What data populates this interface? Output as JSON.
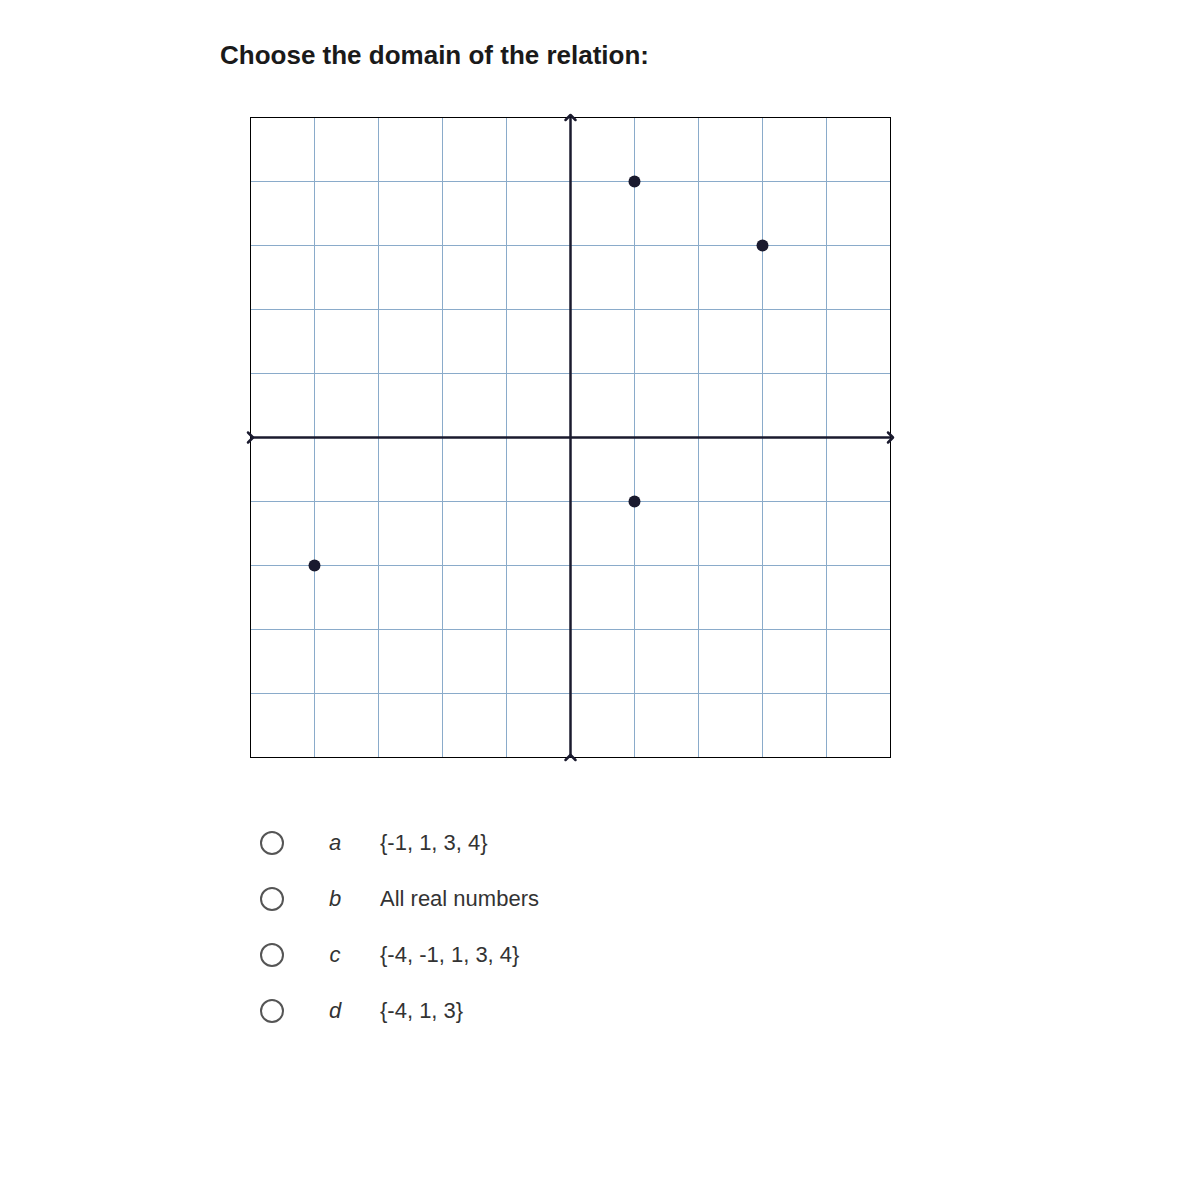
{
  "chart_data": {
    "type": "scatter",
    "title": "Choose the domain of the relation:",
    "x": [
      1,
      3,
      1,
      -4
    ],
    "values": [
      4,
      3,
      -1,
      -2
    ],
    "color": "#1a1a2e",
    "xlim": [
      -5,
      5
    ],
    "ylim": [
      -5,
      5
    ],
    "xticks": [
      -5,
      -4,
      -3,
      -2,
      -1,
      0,
      1,
      2,
      3,
      4,
      5
    ],
    "yticks": [
      -5,
      -4,
      -3,
      -2,
      -1,
      0,
      1,
      2,
      3,
      4,
      5
    ],
    "grid": true,
    "tick_labels": false,
    "annotations": [
      {
        "label": "a",
        "text": "{-1, 1, 3, 4}"
      },
      {
        "label": "b",
        "text": "All real numbers"
      },
      {
        "label": "c",
        "text": "{-4, -1, 1, 3, 4}"
      },
      {
        "label": "d",
        "text": "{-4, 1, 3}"
      }
    ]
  }
}
